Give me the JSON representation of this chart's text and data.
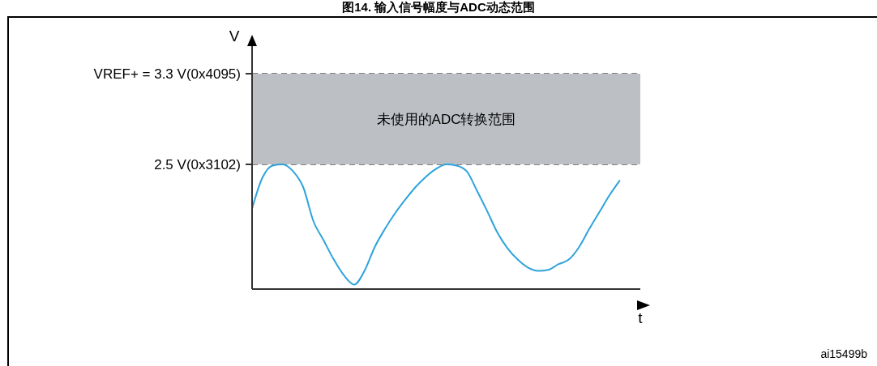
{
  "chart_data": {
    "type": "line",
    "title": "图14. 输入信号幅度与ADC动态范围",
    "xlabel": "t",
    "ylabel": "V",
    "categories": [
      null,
      null,
      null,
      null,
      null,
      null,
      null,
      null,
      null,
      null,
      null,
      null,
      null,
      null,
      null,
      null,
      null,
      null,
      null,
      null,
      null,
      null,
      null,
      null,
      null,
      null,
      null,
      null,
      null,
      null,
      null,
      null,
      null,
      null,
      null,
      null,
      null,
      null,
      null
    ],
    "series": [
      {
        "color": "#2ea3dc",
        "values": [
          2.11,
          2.38,
          2.49,
          2.5,
          2.44,
          2.3,
          2.0,
          1.83,
          1.66,
          1.52,
          1.44,
          1.56,
          1.77,
          1.93,
          2.07,
          2.19,
          2.3,
          2.39,
          2.46,
          2.5,
          2.49,
          2.44,
          2.27,
          2.09,
          1.9,
          1.76,
          1.66,
          1.59,
          1.56,
          1.57,
          1.62,
          1.66,
          1.77,
          1.93,
          2.08,
          2.23,
          2.36,
          null,
          null
        ]
      }
    ],
    "ylim": [
      1.4,
      3.6
    ],
    "yticks": [
      {
        "value": 2.5,
        "label": "2.5 V"
      },
      {
        "value": 3.3,
        "label": "VREF+ = 3.3 V"
      }
    ],
    "grid": "y",
    "tick_labels": "y",
    "bands": [
      {
        "axis": "y",
        "from": 2.5,
        "to": 3.3,
        "label": "未使用的ADC转换范围",
        "color": "#bcbfc4"
      }
    ],
    "annotations": [
      "(0x3102)",
      "(0x4095)",
      "ai15499b"
    ]
  }
}
